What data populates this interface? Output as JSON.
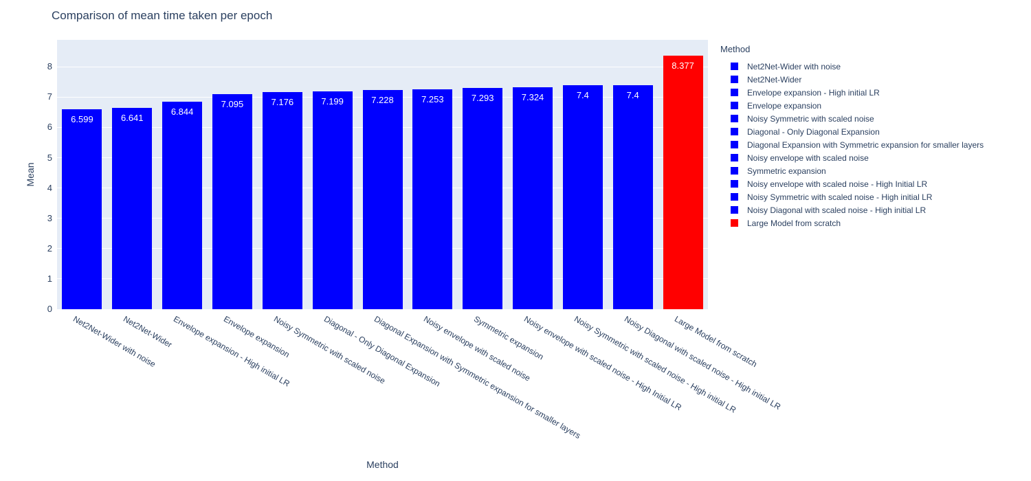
{
  "title": "Comparison of mean time taken per epoch",
  "axes": {
    "y_title": "Mean",
    "x_title": "Method",
    "y_ticks": [
      0,
      1,
      2,
      3,
      4,
      5,
      6,
      7,
      8
    ]
  },
  "legend": {
    "title": "Method"
  },
  "colors": {
    "bar_blue": "#0000ff",
    "bar_red": "#ff0000",
    "plot_bg": "#e5ecf6",
    "grid": "#ffffff",
    "text": "#2a3f5f",
    "bar_label": "#ffffff"
  },
  "chart_data": {
    "type": "bar",
    "title": "Comparison of mean time taken per epoch",
    "xlabel": "Method",
    "ylabel": "Mean",
    "ylim": [
      0,
      8.89
    ],
    "grid": true,
    "legend_position": "right",
    "legend_title": "Method",
    "categories": [
      "Net2Net-Wider with noise",
      "Net2Net-Wider",
      "Envelope expansion - High initial LR",
      "Envelope expansion",
      "Noisy Symmetric with scaled noise",
      "Diagonal - Only Diagonal Expansion",
      "Diagonal Expansion with Symmetric expansion for smaller layers",
      "Noisy envelope with scaled noise",
      "Symmetric expansion",
      "Noisy envelope with scaled noise - High Initial LR",
      "Noisy Symmetric with scaled noise - High initial LR",
      "Noisy Diagonal with scaled noise - High initial LR",
      "Large Model from scratch"
    ],
    "values": [
      6.599,
      6.641,
      6.844,
      7.095,
      7.176,
      7.199,
      7.228,
      7.253,
      7.293,
      7.324,
      7.4,
      7.4,
      8.377
    ],
    "bar_labels": [
      "6.599",
      "6.641",
      "6.844",
      "7.095",
      "7.176",
      "7.199",
      "7.228",
      "7.253",
      "7.293",
      "7.324",
      "7.4",
      "7.4",
      "8.377"
    ],
    "bar_colors": [
      "#0000ff",
      "#0000ff",
      "#0000ff",
      "#0000ff",
      "#0000ff",
      "#0000ff",
      "#0000ff",
      "#0000ff",
      "#0000ff",
      "#0000ff",
      "#0000ff",
      "#0000ff",
      "#ff0000"
    ],
    "legend_entries": [
      {
        "label": "Net2Net-Wider with noise",
        "color": "#0000ff"
      },
      {
        "label": "Net2Net-Wider",
        "color": "#0000ff"
      },
      {
        "label": "Envelope expansion - High initial LR",
        "color": "#0000ff"
      },
      {
        "label": "Envelope expansion",
        "color": "#0000ff"
      },
      {
        "label": "Noisy Symmetric with scaled noise",
        "color": "#0000ff"
      },
      {
        "label": "Diagonal - Only Diagonal Expansion",
        "color": "#0000ff"
      },
      {
        "label": "Diagonal Expansion with Symmetric expansion for smaller layers",
        "color": "#0000ff"
      },
      {
        "label": "Noisy envelope with scaled noise",
        "color": "#0000ff"
      },
      {
        "label": "Symmetric expansion",
        "color": "#0000ff"
      },
      {
        "label": "Noisy envelope with scaled noise - High Initial LR",
        "color": "#0000ff"
      },
      {
        "label": "Noisy Symmetric with scaled noise - High initial LR",
        "color": "#0000ff"
      },
      {
        "label": "Noisy Diagonal with scaled noise - High initial LR",
        "color": "#0000ff"
      },
      {
        "label": "Large Model from scratch",
        "color": "#ff0000"
      }
    ]
  }
}
